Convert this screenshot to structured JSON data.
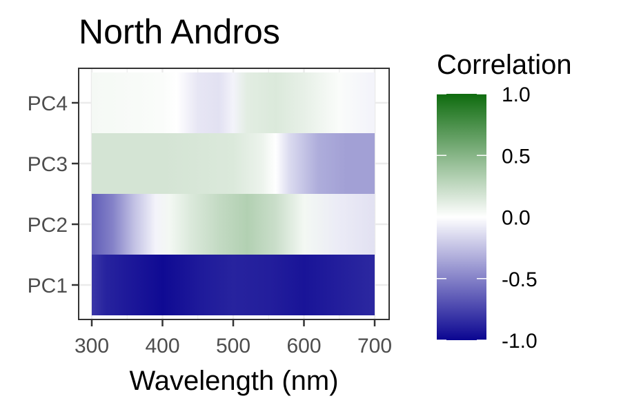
{
  "chart_data": {
    "type": "heatmap",
    "title": "North Andros",
    "xlabel": "Wavelength (nm)",
    "ylabel": "",
    "xlim": [
      300,
      700
    ],
    "x_ticks": [
      300,
      400,
      500,
      600,
      700
    ],
    "rows": [
      "PC1",
      "PC2",
      "PC3",
      "PC4"
    ],
    "legend": {
      "title": "Correlation",
      "position": "right",
      "limits": [
        -1.0,
        1.0
      ],
      "ticks": [
        1.0,
        0.5,
        0.0,
        -0.5,
        -1.0
      ],
      "tick_labels": [
        "1.0",
        "0.5",
        "0.0",
        "-0.5",
        "-1.0"
      ],
      "colors": {
        "low": "#0a0591",
        "mid": "#ffffff",
        "high": "#0e6b0e"
      }
    },
    "series": [
      {
        "name": "PC1",
        "x": [
          300,
          320,
          350,
          400,
          450,
          500,
          550,
          600,
          650,
          700
        ],
        "values": [
          -0.8,
          -0.88,
          -0.92,
          -0.98,
          -0.92,
          -0.88,
          -0.9,
          -0.94,
          -0.9,
          -0.86
        ]
      },
      {
        "name": "PC2",
        "x": [
          300,
          330,
          360,
          390,
          410,
          440,
          480,
          520,
          560,
          600,
          650,
          700
        ],
        "values": [
          -0.65,
          -0.5,
          -0.25,
          -0.05,
          0.05,
          0.15,
          0.25,
          0.32,
          0.22,
          0.05,
          -0.08,
          -0.12
        ]
      },
      {
        "name": "PC3",
        "x": [
          300,
          400,
          500,
          540,
          560,
          580,
          620,
          660,
          700
        ],
        "values": [
          0.18,
          0.18,
          0.15,
          0.08,
          0.0,
          -0.15,
          -0.33,
          -0.38,
          -0.38
        ]
      },
      {
        "name": "PC4",
        "x": [
          300,
          400,
          420,
          450,
          480,
          500,
          520,
          560,
          600,
          650,
          700
        ],
        "values": [
          0.04,
          0.02,
          0.0,
          -0.1,
          -0.12,
          -0.05,
          0.12,
          0.15,
          0.1,
          0.02,
          -0.05
        ]
      }
    ],
    "grid": true
  }
}
